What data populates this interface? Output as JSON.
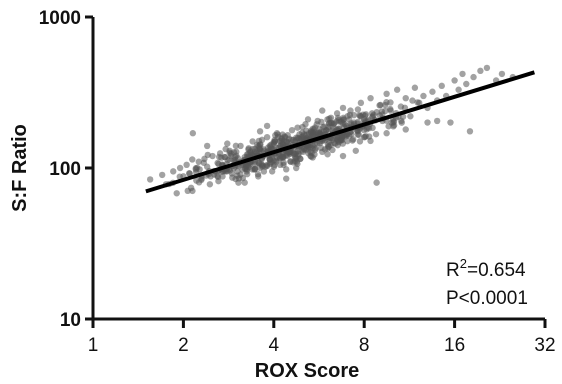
{
  "chart_data": {
    "type": "scatter",
    "title": "",
    "xlabel": "ROX Score",
    "ylabel": "S:F Ratio",
    "xscale": "log2",
    "yscale": "log10",
    "xlim": [
      1,
      32
    ],
    "ylim": [
      10,
      1000
    ],
    "xticks": [
      "1",
      "2",
      "4",
      "8",
      "16",
      "32"
    ],
    "yticks": [
      "10",
      "100",
      "1000"
    ],
    "grid": false,
    "legend": "none",
    "point_color": "#555555",
    "line_color": "#000000",
    "series": [
      {
        "type": "scatter",
        "points": [
          [
            1.55,
            84
          ],
          [
            1.7,
            90
          ],
          [
            1.75,
            78
          ],
          [
            1.85,
            95
          ],
          [
            1.9,
            68
          ],
          [
            1.95,
            100
          ],
          [
            2.0,
            88
          ],
          [
            2.05,
            105
          ],
          [
            2.1,
            92
          ],
          [
            2.15,
            170
          ],
          [
            2.2,
            98
          ],
          [
            2.25,
            110
          ],
          [
            2.3,
            85
          ],
          [
            2.35,
            115
          ],
          [
            2.4,
            102
          ],
          [
            2.45,
            78
          ],
          [
            2.5,
            120
          ],
          [
            2.55,
            95
          ],
          [
            2.6,
            108
          ],
          [
            2.65,
            125
          ],
          [
            2.7,
            88
          ],
          [
            2.75,
            118
          ],
          [
            2.8,
            100
          ],
          [
            2.85,
            130
          ],
          [
            2.9,
            92
          ],
          [
            2.95,
            112
          ],
          [
            3.0,
            128
          ],
          [
            3.05,
            80
          ],
          [
            3.1,
            140
          ],
          [
            3.15,
            105
          ],
          [
            3.2,
            118
          ],
          [
            3.25,
            95
          ],
          [
            3.3,
            135
          ],
          [
            3.35,
            110
          ],
          [
            3.4,
            150
          ],
          [
            3.45,
            98
          ],
          [
            3.5,
            125
          ],
          [
            3.55,
            88
          ],
          [
            3.6,
            142
          ],
          [
            3.65,
            115
          ],
          [
            3.7,
            130
          ],
          [
            3.75,
            102
          ],
          [
            3.8,
            160
          ],
          [
            3.85,
            120
          ],
          [
            3.9,
            138
          ],
          [
            3.95,
            95
          ],
          [
            4.0,
            148
          ],
          [
            4.05,
            112
          ],
          [
            4.1,
            170
          ],
          [
            4.15,
            128
          ],
          [
            4.2,
            105
          ],
          [
            4.25,
            155
          ],
          [
            4.3,
            118
          ],
          [
            4.35,
            140
          ],
          [
            4.4,
            98
          ],
          [
            4.45,
            165
          ],
          [
            4.5,
            132
          ],
          [
            4.55,
            110
          ],
          [
            4.6,
            178
          ],
          [
            4.65,
            125
          ],
          [
            4.7,
            150
          ],
          [
            4.75,
            100
          ],
          [
            4.8,
            185
          ],
          [
            4.85,
            138
          ],
          [
            4.9,
            115
          ],
          [
            4.95,
            160
          ],
          [
            5.0,
            128
          ],
          [
            5.1,
            195
          ],
          [
            5.2,
            142
          ],
          [
            5.3,
            120
          ],
          [
            5.4,
            172
          ],
          [
            5.5,
            135
          ],
          [
            5.6,
            205
          ],
          [
            5.7,
            150
          ],
          [
            5.8,
            128
          ],
          [
            5.9,
            188
          ],
          [
            6.0,
            160
          ],
          [
            6.1,
            138
          ],
          [
            6.2,
            215
          ],
          [
            6.3,
            170
          ],
          [
            6.4,
            145
          ],
          [
            6.5,
            230
          ],
          [
            6.6,
            182
          ],
          [
            6.7,
            155
          ],
          [
            6.8,
            250
          ],
          [
            6.9,
            195
          ],
          [
            7.0,
            165
          ],
          [
            7.2,
            240
          ],
          [
            7.4,
            200
          ],
          [
            7.6,
            175
          ],
          [
            7.8,
            270
          ],
          [
            8.0,
            210
          ],
          [
            8.2,
            185
          ],
          [
            8.4,
            290
          ],
          [
            8.6,
            225
          ],
          [
            8.8,
            80
          ],
          [
            9.0,
            260
          ],
          [
            9.2,
            205
          ],
          [
            9.5,
            310
          ],
          [
            9.8,
            240
          ],
          [
            10.0,
            200
          ],
          [
            10.3,
            330
          ],
          [
            10.6,
            255
          ],
          [
            11.0,
            290
          ],
          [
            11.4,
            220
          ],
          [
            11.8,
            340
          ],
          [
            12.2,
            270
          ],
          [
            12.6,
            300
          ],
          [
            13.0,
            250
          ],
          [
            13.5,
            320
          ],
          [
            14.0,
            280
          ],
          [
            14.5,
            350
          ],
          [
            15.0,
            300
          ],
          [
            15.5,
            200
          ],
          [
            16.0,
            380
          ],
          [
            16.5,
            330
          ],
          [
            17.0,
            420
          ],
          [
            17.5,
            360
          ],
          [
            18.0,
            175
          ],
          [
            18.5,
            400
          ],
          [
            19.5,
            440
          ],
          [
            20.5,
            460
          ],
          [
            22.0,
            380
          ],
          [
            23.0,
            420
          ],
          [
            25.0,
            400
          ],
          [
            13.0,
            200
          ],
          [
            14.0,
            205
          ],
          [
            8.5,
            230
          ],
          [
            6.8,
            120
          ],
          [
            5.2,
            210
          ],
          [
            3.6,
            175
          ],
          [
            2.8,
            145
          ],
          [
            4.4,
            85
          ],
          [
            3.2,
            80
          ],
          [
            5.8,
            240
          ],
          [
            7.5,
            130
          ],
          [
            9.5,
            170
          ],
          [
            11.0,
            180
          ],
          [
            2.4,
            140
          ],
          [
            3.8,
            190
          ]
        ]
      },
      {
        "type": "line",
        "name": "",
        "x": [
          1.5,
          29.5
        ],
        "y": [
          70,
          430
        ]
      }
    ],
    "annotations": {
      "r2_prefix": "R",
      "r2_sup": "2",
      "r2_value": "=0.654",
      "p_value": "P<0.0001"
    }
  }
}
